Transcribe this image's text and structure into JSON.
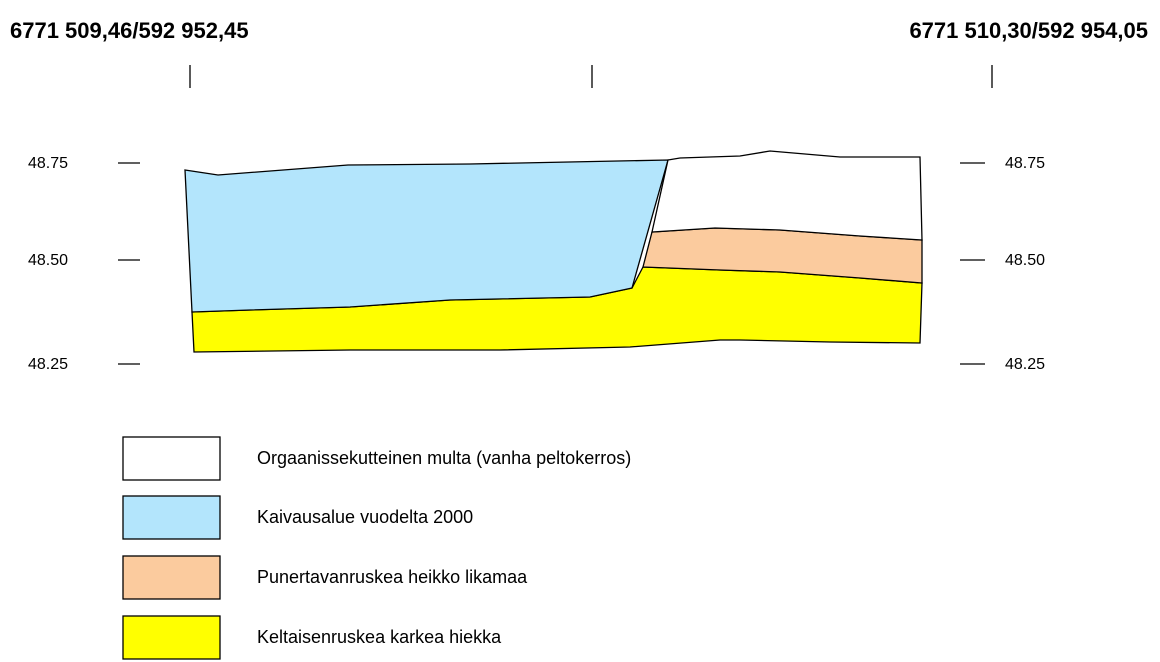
{
  "header": {
    "left_coordinate": "6771 509,46/592 952,45",
    "right_coordinate": "6771 510,30/592 954,05"
  },
  "elevations": {
    "left": [
      "48.75",
      "48.50",
      "48.25"
    ],
    "right": [
      "48.75",
      "48.50",
      "48.25"
    ]
  },
  "legend": {
    "items": [
      {
        "label": "Orgaanissekutteinen multa (vanha peltokerros)"
      },
      {
        "label": "Kaivausalue vuodelta 2000"
      },
      {
        "label": "Punertavanruskea heikko likamaa"
      },
      {
        "label": "Keltaisenruskea karkea hiekka"
      }
    ]
  }
}
